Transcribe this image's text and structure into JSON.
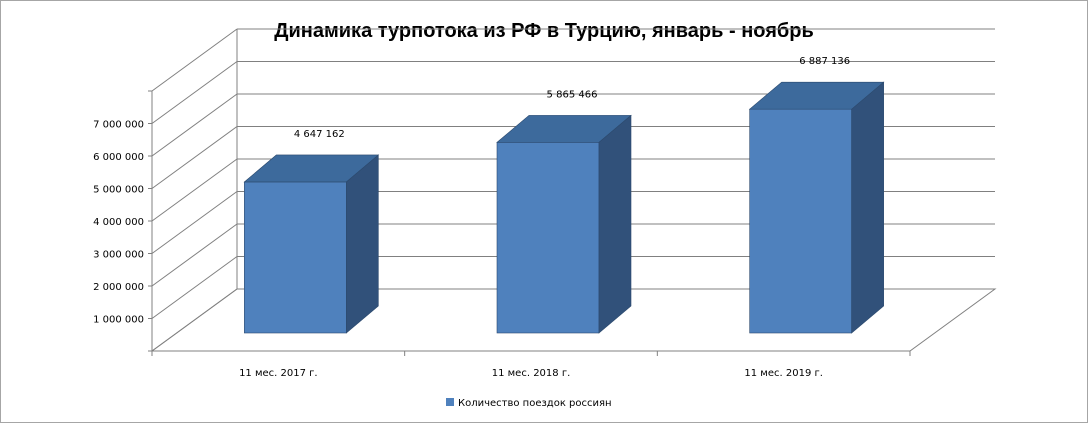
{
  "chart_data": {
    "type": "bar",
    "title": "Динамика турпотока из РФ в Турцию, январь - ноябрь",
    "categories": [
      "11 мес. 2017 г.",
      "11 мес. 2018 г.",
      "11 мес. 2019 г."
    ],
    "series": [
      {
        "name": "Количество поездок россиян",
        "values": [
          4647162,
          5865466,
          6887136
        ],
        "data_labels": [
          "4 647 162",
          "5 865 466",
          "6 887 136"
        ],
        "color": "#4f81bd"
      }
    ],
    "y_ticks": [
      {
        "value": 1000000,
        "label": "1 000 000"
      },
      {
        "value": 2000000,
        "label": "2 000 000"
      },
      {
        "value": 3000000,
        "label": "3 000 000"
      },
      {
        "value": 4000000,
        "label": "4 000 000"
      },
      {
        "value": 5000000,
        "label": "5 000 000"
      },
      {
        "value": 6000000,
        "label": "6 000 000"
      },
      {
        "value": 7000000,
        "label": "7 000 000"
      }
    ],
    "ylim": [
      0,
      8000000
    ],
    "grid": true,
    "legend_position": "bottom",
    "style": "3d-column"
  }
}
